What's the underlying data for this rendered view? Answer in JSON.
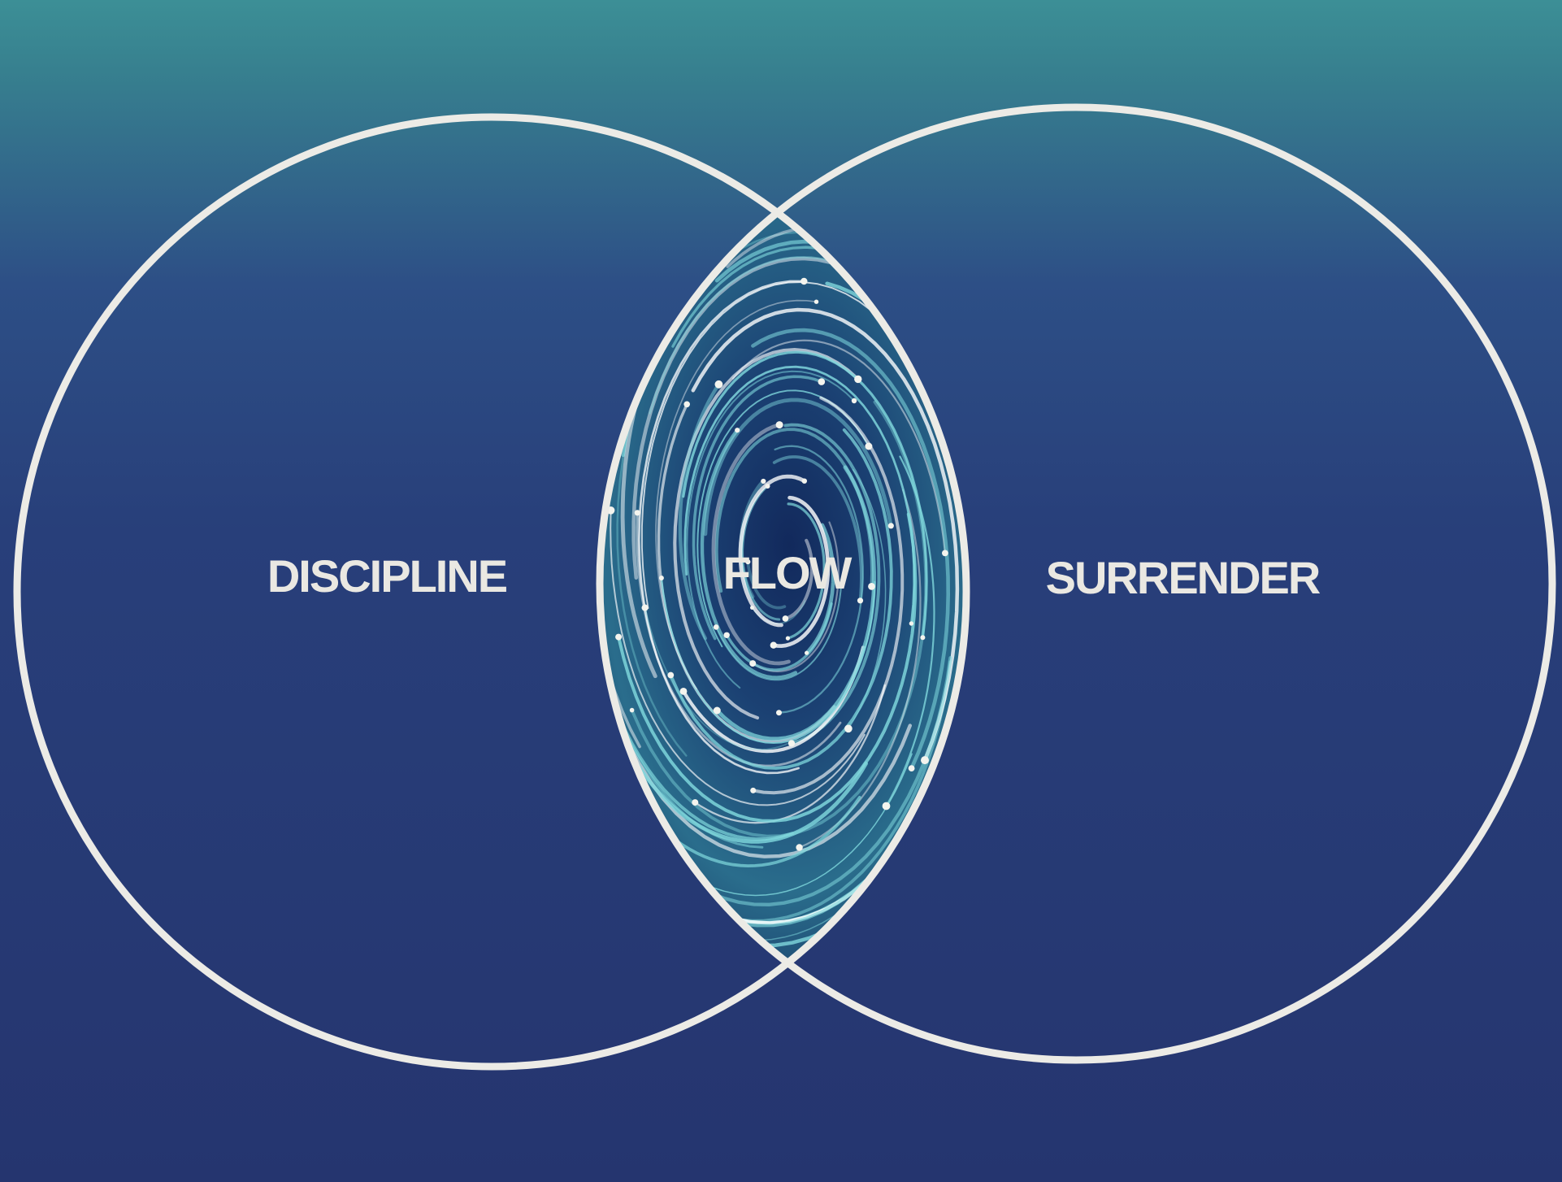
{
  "diagram": {
    "type": "venn",
    "sets": [
      {
        "label": "DISCIPLINE"
      },
      {
        "label": "SURRENDER"
      }
    ],
    "intersection": {
      "label": "FLOW"
    }
  },
  "colors": {
    "background_top": "#3c8f96",
    "background_mid": "#2d4f86",
    "background_bottom": "#25356f",
    "circle_stroke": "#ecebe6",
    "label_text": "#eae8e2",
    "swirl_dark": "#10275a",
    "swirl_light": "#7fd7dc"
  },
  "icons": {
    "intersection_fill": "swirl-vortex-icon"
  }
}
